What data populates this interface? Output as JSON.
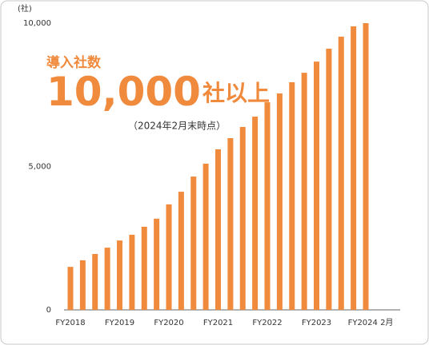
{
  "chart_data": {
    "type": "bar",
    "y_axis_label": "(社)",
    "annotation_label": "導入社数",
    "headline_number": "10,000",
    "headline_suffix": "社以上",
    "note": "（2024年2月末時点）",
    "categories": [
      "FY2018",
      null,
      null,
      null,
      "FY2019",
      null,
      null,
      null,
      "FY2020",
      null,
      null,
      null,
      "FY2021",
      null,
      null,
      null,
      "FY2022",
      null,
      null,
      null,
      "FY2023",
      null,
      null,
      null,
      "FY2024 2月"
    ],
    "values": [
      1500,
      1730,
      1950,
      2170,
      2420,
      2620,
      2900,
      3180,
      3680,
      4120,
      4650,
      5100,
      5600,
      5990,
      6380,
      6740,
      7240,
      7550,
      7940,
      8270,
      8660,
      9110,
      9530,
      9890,
      10000
    ],
    "color": "#f08a3c",
    "ylim": [
      0,
      10000
    ],
    "yticks": [
      0,
      {
        "value": 5000,
        "label": "5,000"
      },
      {
        "value": 10000,
        "label": "10,000"
      }
    ],
    "grid": false
  }
}
